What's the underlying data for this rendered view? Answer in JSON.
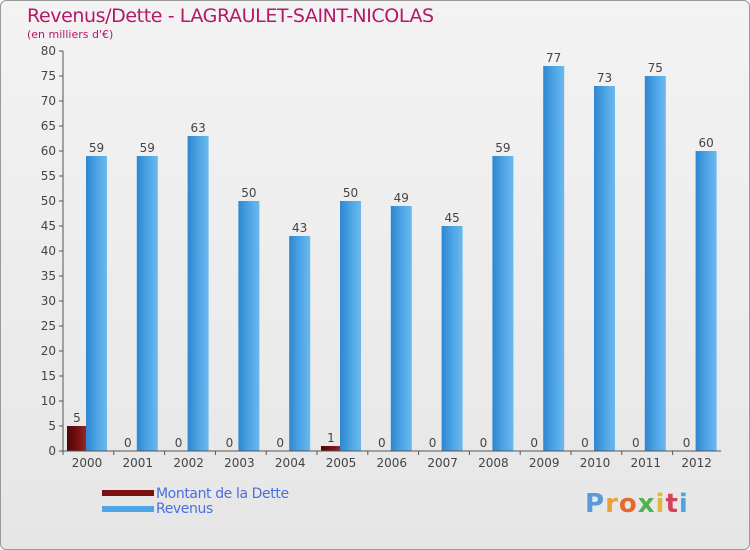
{
  "title": "Revenus/Dette - LAGRAULET-SAINT-NICOLAS",
  "subtitle": "(en milliers d'€)",
  "colors": {
    "debt": "#7a1010",
    "revenue": "#4fa6e6",
    "title": "#b5176a",
    "legend_text": "#4a6ee0"
  },
  "legend": {
    "debt_label": "Montant de la Dette",
    "revenue_label": "Revenus"
  },
  "logo": {
    "letters": [
      "P",
      "r",
      "o",
      "x",
      "i",
      "t",
      "i"
    ],
    "colors": [
      "#5a9ad8",
      "#e8a23a",
      "#e56a2a",
      "#4fb34f",
      "#e3b53a",
      "#d5405a",
      "#4aa6e0"
    ]
  },
  "chart_data": {
    "type": "bar",
    "title": "Revenus/Dette - LAGRAULET-SAINT-NICOLAS",
    "subtitle": "(en milliers d'€)",
    "categories": [
      "2000",
      "2001",
      "2002",
      "2003",
      "2004",
      "2005",
      "2006",
      "2007",
      "2008",
      "2009",
      "2010",
      "2011",
      "2012"
    ],
    "series": [
      {
        "name": "Montant de la Dette",
        "color": "#7a1010",
        "values": [
          5,
          0,
          0,
          0,
          0,
          1,
          0,
          0,
          0,
          0,
          0,
          0,
          0
        ]
      },
      {
        "name": "Revenus",
        "color": "#4fa6e6",
        "values": [
          59,
          59,
          63,
          50,
          43,
          50,
          49,
          45,
          59,
          77,
          73,
          75,
          60
        ]
      }
    ],
    "ylim": [
      0,
      80
    ],
    "yticks": [
      0,
      5,
      10,
      15,
      20,
      25,
      30,
      35,
      40,
      45,
      50,
      55,
      60,
      65,
      70,
      75,
      80
    ],
    "grid": false,
    "legend_position": "bottom-left"
  }
}
